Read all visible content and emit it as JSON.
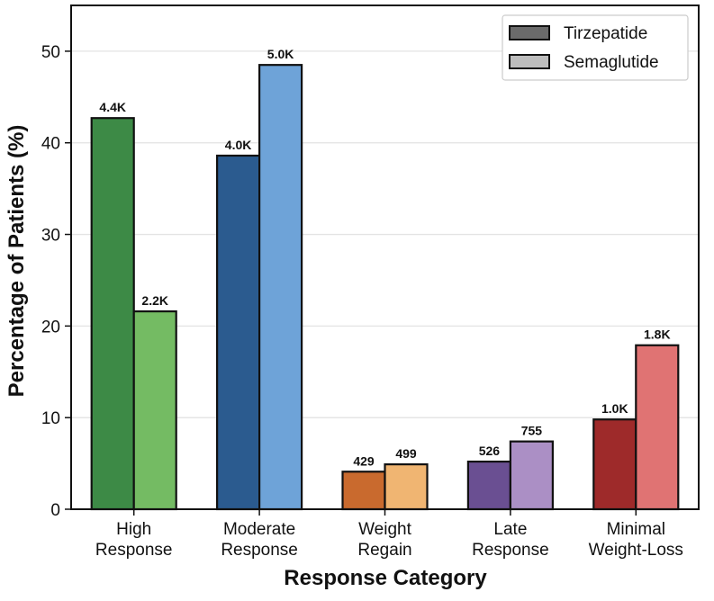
{
  "chart_data": {
    "type": "bar",
    "xlabel": "Response Category",
    "ylabel": "Percentage of Patients (%)",
    "ylim": [
      0,
      55
    ],
    "yticks": [
      0,
      10,
      20,
      30,
      40,
      50
    ],
    "grid": "horizontal",
    "legend_position": "top-right",
    "categories": [
      [
        "High",
        "Response"
      ],
      [
        "Moderate",
        "Response"
      ],
      [
        "Weight",
        "Regain"
      ],
      [
        "Late",
        "Response"
      ],
      [
        "Minimal",
        "Weight-Loss"
      ]
    ],
    "series": [
      {
        "name": "Tirzepatide",
        "values": [
          42.7,
          38.6,
          4.1,
          5.2,
          9.8
        ],
        "labels": [
          "4.4K",
          "4.0K",
          "429",
          "526",
          "1.0K"
        ],
        "colors": [
          "#3d8a46",
          "#2b5b8f",
          "#c96a2e",
          "#6a4f92",
          "#9e2a2a"
        ],
        "legend_color": "#6b6b6b"
      },
      {
        "name": "Semaglutide",
        "values": [
          21.6,
          48.5,
          4.9,
          7.4,
          17.9
        ],
        "labels": [
          "2.2K",
          "5.0K",
          "499",
          "755",
          "1.8K"
        ],
        "colors": [
          "#74bb63",
          "#6ea3d8",
          "#f0b572",
          "#ab8fc5",
          "#e07373"
        ],
        "legend_color": "#bdbdbd"
      }
    ]
  }
}
